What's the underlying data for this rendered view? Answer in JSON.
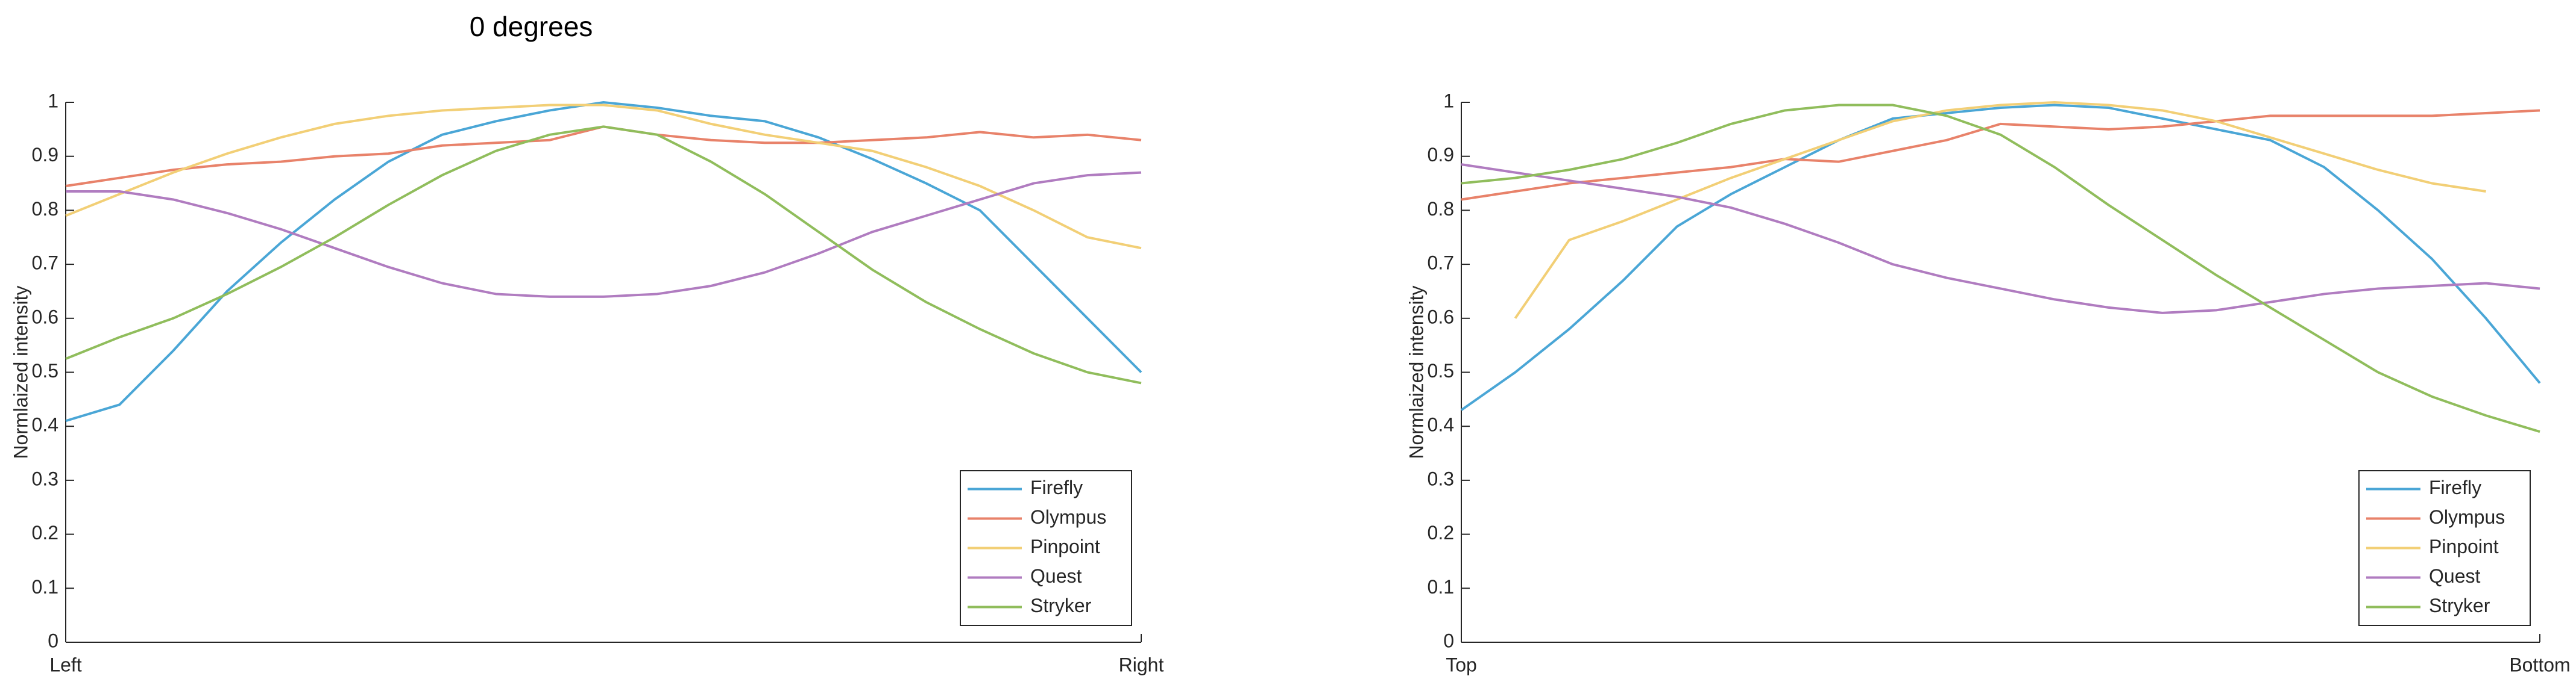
{
  "chart_data": [
    {
      "type": "line",
      "title": "0 degrees",
      "ylabel": "Normlaized intensity",
      "x": [
        0,
        1,
        2,
        3,
        4,
        5,
        6,
        7,
        8,
        9,
        10,
        11,
        12,
        13,
        14,
        15,
        16,
        17,
        18,
        19,
        20
      ],
      "xlim": [
        0,
        20
      ],
      "xticks": [
        {
          "value": 0,
          "label": "Left"
        },
        {
          "value": 20,
          "label": "Right"
        }
      ],
      "ylim": [
        0,
        1
      ],
      "yticks": [
        0,
        0.1,
        0.2,
        0.3,
        0.4,
        0.5,
        0.6,
        0.7,
        0.8,
        0.9,
        1
      ],
      "legend": "lower right",
      "series": [
        {
          "name": "Firefly",
          "color": "#4aa6d6",
          "values": [
            0.41,
            0.44,
            0.54,
            0.65,
            0.74,
            0.82,
            0.89,
            0.94,
            0.965,
            0.985,
            1.0,
            0.99,
            0.975,
            0.965,
            0.935,
            0.895,
            0.85,
            0.8,
            0.7,
            0.6,
            0.5
          ]
        },
        {
          "name": "Olympus",
          "color": "#e8826a",
          "values": [
            0.845,
            0.86,
            0.875,
            0.885,
            0.89,
            0.9,
            0.905,
            0.92,
            0.925,
            0.93,
            0.955,
            0.94,
            0.93,
            0.925,
            0.925,
            0.93,
            0.935,
            0.945,
            0.935,
            0.94,
            0.93
          ]
        },
        {
          "name": "Pinpoint",
          "color": "#f2cf76",
          "values": [
            0.79,
            0.83,
            0.87,
            0.905,
            0.935,
            0.96,
            0.975,
            0.985,
            0.99,
            0.995,
            0.995,
            0.985,
            0.96,
            0.94,
            0.925,
            0.91,
            0.88,
            0.845,
            0.8,
            0.75,
            0.73
          ]
        },
        {
          "name": "Quest",
          "color": "#b07cc0",
          "values": [
            0.835,
            0.835,
            0.82,
            0.795,
            0.765,
            0.73,
            0.695,
            0.665,
            0.645,
            0.64,
            0.64,
            0.645,
            0.66,
            0.685,
            0.72,
            0.76,
            0.79,
            0.82,
            0.85,
            0.865,
            0.87
          ]
        },
        {
          "name": "Stryker",
          "color": "#90bd5c",
          "values": [
            0.525,
            0.565,
            0.6,
            0.645,
            0.695,
            0.75,
            0.81,
            0.865,
            0.91,
            0.94,
            0.955,
            0.94,
            0.89,
            0.83,
            0.76,
            0.69,
            0.63,
            0.58,
            0.535,
            0.5,
            0.48
          ]
        }
      ]
    },
    {
      "type": "line",
      "ylabel": "Normlaized intensity",
      "x": [
        0,
        1,
        2,
        3,
        4,
        5,
        6,
        7,
        8,
        9,
        10,
        11,
        12,
        13,
        14,
        15,
        16,
        17,
        18,
        19,
        20
      ],
      "xlim": [
        0,
        20
      ],
      "xticks": [
        {
          "value": 0,
          "label": "Top"
        },
        {
          "value": 20,
          "label": "Bottom"
        }
      ],
      "ylim": [
        0,
        1
      ],
      "yticks": [
        0,
        0.1,
        0.2,
        0.3,
        0.4,
        0.5,
        0.6,
        0.7,
        0.8,
        0.9,
        1
      ],
      "legend": "lower right",
      "series": [
        {
          "name": "Firefly",
          "color": "#4aa6d6",
          "values": [
            0.43,
            0.5,
            0.58,
            0.67,
            0.77,
            0.83,
            0.88,
            0.93,
            0.97,
            0.98,
            0.99,
            0.995,
            0.99,
            0.97,
            0.95,
            0.93,
            0.88,
            0.8,
            0.71,
            0.6,
            0.48
          ]
        },
        {
          "name": "Olympus",
          "color": "#e8826a",
          "values": [
            0.82,
            0.835,
            0.85,
            0.86,
            0.87,
            0.88,
            0.895,
            0.89,
            0.91,
            0.93,
            0.96,
            0.955,
            0.95,
            0.955,
            0.965,
            0.975,
            0.975,
            0.975,
            0.975,
            0.98,
            0.985
          ]
        },
        {
          "name": "Pinpoint",
          "color": "#f2cf76",
          "values": [
            null,
            0.6,
            0.745,
            0.78,
            0.82,
            0.86,
            0.895,
            0.93,
            0.965,
            0.985,
            0.995,
            1.0,
            0.995,
            0.985,
            0.965,
            0.935,
            0.905,
            0.875,
            0.85,
            0.835,
            null
          ]
        },
        {
          "name": "Quest",
          "color": "#b07cc0",
          "values": [
            0.885,
            0.87,
            0.855,
            0.84,
            0.825,
            0.805,
            0.775,
            0.74,
            0.7,
            0.675,
            0.655,
            0.635,
            0.62,
            0.61,
            0.615,
            0.63,
            0.645,
            0.655,
            0.66,
            0.665,
            0.655
          ]
        },
        {
          "name": "Stryker",
          "color": "#90bd5c",
          "values": [
            0.85,
            0.86,
            0.875,
            0.895,
            0.925,
            0.96,
            0.985,
            0.995,
            0.995,
            0.975,
            0.94,
            0.88,
            0.81,
            0.745,
            0.68,
            0.62,
            0.56,
            0.5,
            0.455,
            0.42,
            0.39
          ]
        }
      ]
    }
  ]
}
